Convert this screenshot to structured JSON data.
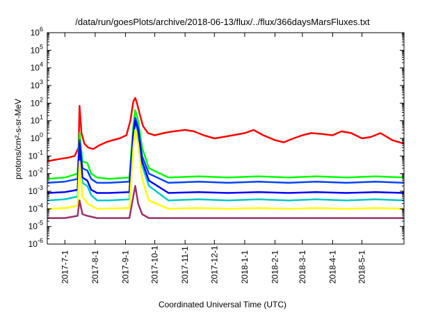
{
  "chart_data": {
    "type": "line",
    "title": "/data/run/goesPlots/archive/2018-06-13/flux/../flux/366daysMarsFluxes.txt",
    "xlabel": "Coordinated Universal Time (UTC)",
    "ylabel": "protons/cm²-s-sr-MeV",
    "y_scale": "log",
    "ylim": [
      1e-06,
      1000000.0
    ],
    "y_ticks": [
      {
        "base": "10",
        "exp": "-6",
        "value": 1e-06
      },
      {
        "base": "10",
        "exp": "-5",
        "value": 1e-05
      },
      {
        "base": "10",
        "exp": "-4",
        "value": 0.0001
      },
      {
        "base": "10",
        "exp": "-3",
        "value": 0.001
      },
      {
        "base": "10",
        "exp": "-2",
        "value": 0.01
      },
      {
        "base": "10",
        "exp": "-1",
        "value": 0.1
      },
      {
        "base": "10",
        "exp": "0",
        "value": 1
      },
      {
        "base": "10",
        "exp": "1",
        "value": 10
      },
      {
        "base": "10",
        "exp": "2",
        "value": 100
      },
      {
        "base": "10",
        "exp": "3",
        "value": 1000
      },
      {
        "base": "10",
        "exp": "4",
        "value": 10000
      },
      {
        "base": "10",
        "exp": "5",
        "value": 100000
      },
      {
        "base": "10",
        "exp": "6",
        "value": 1000000
      }
    ],
    "xlim": [
      "2017-06-13",
      "2018-06-13"
    ],
    "x_ticks": [
      "2017-7-1",
      "2017-8-1",
      "2017-9-1",
      "2017-10-1",
      "2017-11-1",
      "2017-12-1",
      "2018-1-1",
      "2018-2-1",
      "2018-3-1",
      "2018-4-1",
      "2018-5-1"
    ],
    "grid": false,
    "legend": "none",
    "series": [
      {
        "color": "#ff0000",
        "x": [
          "2017-06-13",
          "2017-06-20",
          "2017-06-27",
          "2017-07-04",
          "2017-07-11",
          "2017-07-15",
          "2017-07-16",
          "2017-07-18",
          "2017-07-21",
          "2017-07-25",
          "2017-07-30",
          "2017-08-05",
          "2017-08-12",
          "2017-08-19",
          "2017-08-26",
          "2017-09-02",
          "2017-09-06",
          "2017-09-09",
          "2017-09-11",
          "2017-09-13",
          "2017-09-16",
          "2017-09-19",
          "2017-09-24",
          "2017-10-01",
          "2017-10-10",
          "2017-10-20",
          "2017-11-01",
          "2017-11-10",
          "2017-11-20",
          "2017-12-01",
          "2017-12-10",
          "2017-12-20",
          "2018-01-01",
          "2018-01-10",
          "2018-01-20",
          "2018-02-01",
          "2018-02-10",
          "2018-02-20",
          "2018-03-01",
          "2018-03-10",
          "2018-03-20",
          "2018-04-01",
          "2018-04-10",
          "2018-04-20",
          "2018-05-01",
          "2018-05-10",
          "2018-05-20",
          "2018-06-01",
          "2018-06-13"
        ],
        "y": [
          0.05,
          0.06,
          0.07,
          0.08,
          0.1,
          0.3,
          70,
          2,
          0.5,
          0.3,
          0.25,
          0.4,
          0.6,
          0.8,
          1,
          1.5,
          10,
          120,
          200,
          90,
          20,
          5,
          2,
          1.5,
          2,
          2.5,
          3,
          2.5,
          1.5,
          1,
          1.2,
          1.5,
          2,
          3,
          1.5,
          0.8,
          0.6,
          1,
          1.5,
          2,
          1.8,
          1.5,
          2.5,
          2,
          1,
          1.2,
          2,
          0.8,
          0.5
        ]
      },
      {
        "color": "#00ff00",
        "x": [
          "2017-06-13",
          "2017-07-01",
          "2017-07-14",
          "2017-07-16",
          "2017-07-19",
          "2017-07-24",
          "2017-07-28",
          "2017-08-03",
          "2017-08-15",
          "2017-09-05",
          "2017-09-09",
          "2017-09-11",
          "2017-09-14",
          "2017-09-18",
          "2017-09-25",
          "2017-10-15",
          "2017-11-15",
          "2017-12-15",
          "2018-01-15",
          "2018-02-15",
          "2018-03-15",
          "2018-04-15",
          "2018-05-15",
          "2018-06-13"
        ],
        "y": [
          0.005,
          0.006,
          0.01,
          2,
          0.05,
          0.04,
          0.01,
          0.006,
          0.005,
          0.006,
          5,
          40,
          10,
          0.3,
          0.02,
          0.006,
          0.007,
          0.006,
          0.007,
          0.006,
          0.007,
          0.006,
          0.007,
          0.006
        ]
      },
      {
        "color": "#0044ff",
        "x": [
          "2017-06-13",
          "2017-07-01",
          "2017-07-14",
          "2017-07-16",
          "2017-07-19",
          "2017-07-24",
          "2017-07-28",
          "2017-08-03",
          "2017-08-15",
          "2017-09-05",
          "2017-09-09",
          "2017-09-11",
          "2017-09-14",
          "2017-09-18",
          "2017-09-25",
          "2017-10-15",
          "2017-11-15",
          "2017-12-15",
          "2018-01-15",
          "2018-02-15",
          "2018-03-15",
          "2018-04-15",
          "2018-05-15",
          "2018-06-13"
        ],
        "y": [
          0.003,
          0.0035,
          0.005,
          0.8,
          0.02,
          0.015,
          0.005,
          0.003,
          0.003,
          0.0035,
          2,
          15,
          4,
          0.1,
          0.01,
          0.003,
          0.0035,
          0.003,
          0.0035,
          0.003,
          0.0035,
          0.003,
          0.0035,
          0.003
        ]
      },
      {
        "color": "#00c8c8",
        "x": [
          "2017-06-13",
          "2017-07-01",
          "2017-07-14",
          "2017-07-16",
          "2017-07-19",
          "2017-07-24",
          "2017-07-28",
          "2017-08-03",
          "2017-08-15",
          "2017-09-05",
          "2017-09-09",
          "2017-09-11",
          "2017-09-14",
          "2017-09-18",
          "2017-09-25",
          "2017-10-15",
          "2017-11-15",
          "2017-12-15",
          "2018-01-15",
          "2018-02-15",
          "2018-03-15",
          "2018-04-15",
          "2018-05-15",
          "2018-06-13"
        ],
        "y": [
          0.0003,
          0.00035,
          0.0005,
          0.3,
          0.003,
          0.002,
          0.0006,
          0.0003,
          0.0003,
          0.00035,
          1,
          8,
          2,
          0.03,
          0.002,
          0.0003,
          0.00035,
          0.0003,
          0.00035,
          0.0003,
          0.00035,
          0.0003,
          0.00035,
          0.0003
        ]
      },
      {
        "color": "#0000ff",
        "x": [
          "2017-06-13",
          "2017-07-01",
          "2017-07-14",
          "2017-07-16",
          "2017-07-19",
          "2017-07-24",
          "2017-07-28",
          "2017-08-03",
          "2017-08-15",
          "2017-09-05",
          "2017-09-09",
          "2017-09-11",
          "2017-09-14",
          "2017-09-18",
          "2017-09-25",
          "2017-10-15",
          "2017-11-15",
          "2017-12-15",
          "2018-01-15",
          "2018-02-15",
          "2018-03-15",
          "2018-04-15",
          "2018-05-15",
          "2018-06-13"
        ],
        "y": [
          0.0008,
          0.0009,
          0.0012,
          0.5,
          0.006,
          0.004,
          0.0012,
          0.0008,
          0.0008,
          0.0009,
          1.5,
          10,
          3,
          0.05,
          0.004,
          0.0008,
          0.0009,
          0.0008,
          0.0009,
          0.0008,
          0.0009,
          0.0008,
          0.0009,
          0.0008
        ]
      },
      {
        "color": "#ffff00",
        "x": [
          "2017-06-13",
          "2017-07-01",
          "2017-07-14",
          "2017-07-16",
          "2017-07-19",
          "2017-07-24",
          "2017-08-03",
          "2017-09-05",
          "2017-09-09",
          "2017-09-11",
          "2017-09-14",
          "2017-09-18",
          "2017-09-25",
          "2017-10-15",
          "2017-11-15",
          "2017-12-15",
          "2018-01-15",
          "2018-02-15",
          "2018-03-15",
          "2018-04-15",
          "2018-05-15",
          "2018-06-13"
        ],
        "y": [
          0.0001,
          0.00011,
          0.00015,
          0.05,
          0.0005,
          0.0002,
          0.0001,
          0.00011,
          0.3,
          3,
          0.5,
          0.005,
          0.0003,
          0.0001,
          0.00011,
          0.0001,
          0.00011,
          0.0001,
          0.00011,
          0.0001,
          0.00011,
          0.0001
        ]
      },
      {
        "color": "#993366",
        "x": [
          "2017-06-13",
          "2017-07-01",
          "2017-07-14",
          "2017-07-16",
          "2017-07-19",
          "2017-07-24",
          "2017-08-03",
          "2017-09-05",
          "2017-09-09",
          "2017-09-11",
          "2017-09-14",
          "2017-09-18",
          "2017-09-25",
          "2017-10-15",
          "2017-11-15",
          "2017-12-15",
          "2018-01-15",
          "2018-02-15",
          "2018-03-15",
          "2018-04-15",
          "2018-05-15",
          "2018-06-13"
        ],
        "y": [
          3e-05,
          3e-05,
          4e-05,
          0.0003,
          5e-05,
          4e-05,
          3e-05,
          3e-05,
          0.0005,
          0.002,
          0.0002,
          5e-05,
          3e-05,
          3e-05,
          3e-05,
          3e-05,
          3e-05,
          3e-05,
          3e-05,
          3e-05,
          3e-05,
          3e-05
        ]
      }
    ]
  }
}
